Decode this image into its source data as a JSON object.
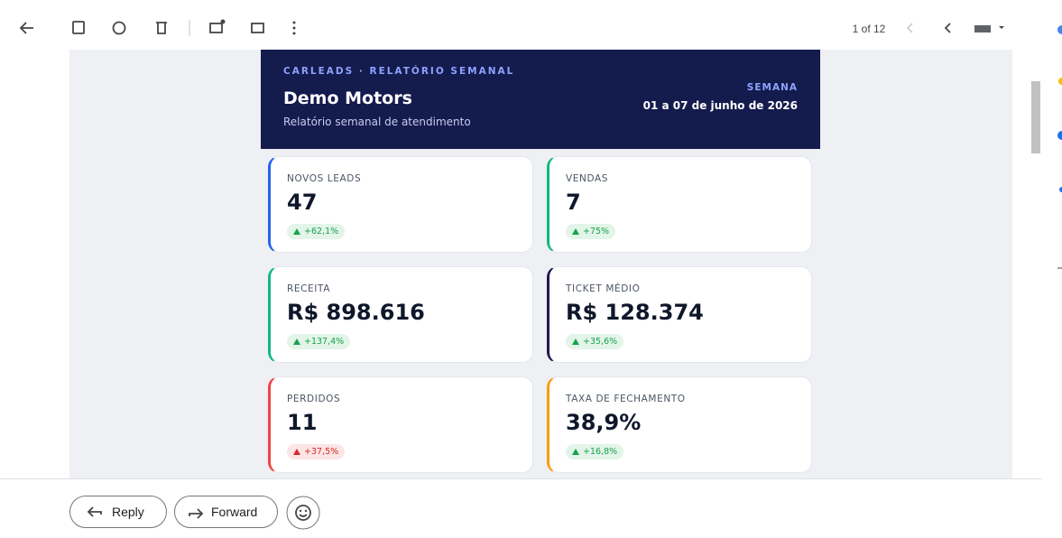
{
  "toolbar": {
    "pager": "1 of 12"
  },
  "report": {
    "brand": "CARLEADS · RELATÓRIO SEMANAL",
    "title": "Demo Motors",
    "subtitle": "Relatório semanal de atendimento",
    "week_label": "SEMANA",
    "week_range": "01 a 07 de junho de 2026",
    "cards": [
      {
        "label": "NOVOS LEADS",
        "value": "47",
        "change": "+62,1%",
        "accent": "#2563eb",
        "badge_color": "#16a34a"
      },
      {
        "label": "VENDAS",
        "value": "7",
        "change": "+75%",
        "accent": "#10b981",
        "badge_color": "#16a34a"
      },
      {
        "label": "RECEITA",
        "value": "R$ 898.616",
        "change": "+137,4%",
        "accent": "#10b981",
        "badge_color": "#16a34a"
      },
      {
        "label": "TICKET MÉDIO",
        "value": "R$ 128.374",
        "change": "+35,6%",
        "accent": "#1e1b4b",
        "badge_color": "#16a34a"
      },
      {
        "label": "PERDIDOS",
        "value": "11",
        "change": "+37,5%",
        "accent": "#ef4444",
        "badge_color": "#dc2626"
      },
      {
        "label": "TAXA DE FECHAMENTO",
        "value": "38,9%",
        "change": "+16,8%",
        "accent": "#f59e0b",
        "badge_color": "#16a34a"
      }
    ]
  },
  "actions": {
    "reply": "Reply",
    "forward": "Forward"
  }
}
